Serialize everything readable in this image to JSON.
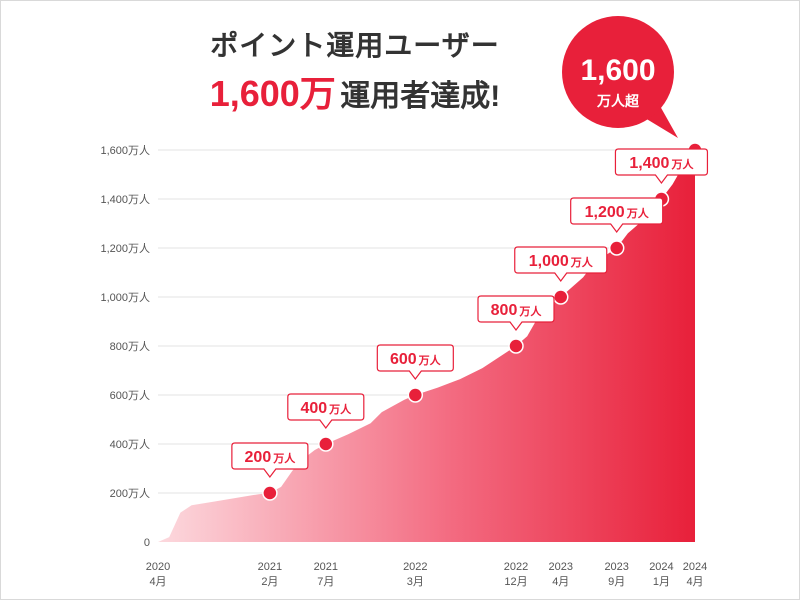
{
  "headline": {
    "line1": "ポイント運用ユーザー",
    "big_number": "1,600万",
    "rest": "運用者達成!"
  },
  "badge": {
    "number": "1,600",
    "unit": "万人超"
  },
  "colors": {
    "accent": "#e8203a",
    "fill_light": "#fbd6db",
    "grid": "#e3e3e3"
  },
  "chart_data": {
    "type": "area",
    "title": "",
    "xlabel": "",
    "ylabel": "",
    "ylim": [
      0,
      1600
    ],
    "y_unit": "万人",
    "y_ticks": [
      {
        "value": 0,
        "label": "0"
      },
      {
        "value": 200,
        "label": "200万人"
      },
      {
        "value": 400,
        "label": "400万人"
      },
      {
        "value": 600,
        "label": "600万人"
      },
      {
        "value": 800,
        "label": "800万人"
      },
      {
        "value": 1000,
        "label": "1,000万人"
      },
      {
        "value": 1200,
        "label": "1,200万人"
      },
      {
        "value": 1400,
        "label": "1,400万人"
      },
      {
        "value": 1600,
        "label": "1,600万人"
      }
    ],
    "x_range": [
      "2020-04",
      "2024-04"
    ],
    "x_ticks": [
      {
        "date": "2020-04",
        "year": "2020",
        "month": "4月"
      },
      {
        "date": "2021-02",
        "year": "2021",
        "month": "2月"
      },
      {
        "date": "2021-07",
        "year": "2021",
        "month": "7月"
      },
      {
        "date": "2022-03",
        "year": "2022",
        "month": "3月"
      },
      {
        "date": "2022-12",
        "year": "2022",
        "month": "12月"
      },
      {
        "date": "2023-04",
        "year": "2023",
        "month": "4月"
      },
      {
        "date": "2023-09",
        "year": "2023",
        "month": "9月"
      },
      {
        "date": "2024-01",
        "year": "2024",
        "month": "1月"
      },
      {
        "date": "2024-04",
        "year": "2024",
        "month": "4月"
      }
    ],
    "series": [
      {
        "points": [
          [
            "2020-04",
            0
          ],
          [
            "2020-05",
            20
          ],
          [
            "2020-06",
            120
          ],
          [
            "2020-07",
            150
          ],
          [
            "2020-09",
            165
          ],
          [
            "2020-11",
            180
          ],
          [
            "2021-01",
            195
          ],
          [
            "2021-02",
            200
          ],
          [
            "2021-03",
            225
          ],
          [
            "2021-04",
            290
          ],
          [
            "2021-05",
            340
          ],
          [
            "2021-06",
            375
          ],
          [
            "2021-07",
            400
          ],
          [
            "2021-09",
            440
          ],
          [
            "2021-11",
            485
          ],
          [
            "2021-12",
            530
          ],
          [
            "2022-02",
            580
          ],
          [
            "2022-03",
            600
          ],
          [
            "2022-05",
            630
          ],
          [
            "2022-07",
            665
          ],
          [
            "2022-09",
            710
          ],
          [
            "2022-10",
            740
          ],
          [
            "2022-12",
            800
          ],
          [
            "2023-01",
            840
          ],
          [
            "2023-02",
            920
          ],
          [
            "2023-03",
            970
          ],
          [
            "2023-04",
            1000
          ],
          [
            "2023-06",
            1080
          ],
          [
            "2023-07",
            1140
          ],
          [
            "2023-09",
            1200
          ],
          [
            "2023-10",
            1260
          ],
          [
            "2023-12",
            1340
          ],
          [
            "2024-01",
            1400
          ],
          [
            "2024-02",
            1460
          ],
          [
            "2024-03",
            1540
          ],
          [
            "2024-04",
            1600
          ]
        ]
      }
    ],
    "milestones": [
      {
        "date": "2021-02",
        "value": 200,
        "label_num": "200",
        "label_unit": "万人"
      },
      {
        "date": "2021-07",
        "value": 400,
        "label_num": "400",
        "label_unit": "万人"
      },
      {
        "date": "2022-03",
        "value": 600,
        "label_num": "600",
        "label_unit": "万人"
      },
      {
        "date": "2022-12",
        "value": 800,
        "label_num": "800",
        "label_unit": "万人"
      },
      {
        "date": "2023-04",
        "value": 1000,
        "label_num": "1,000",
        "label_unit": "万人"
      },
      {
        "date": "2023-09",
        "value": 1200,
        "label_num": "1,200",
        "label_unit": "万人"
      },
      {
        "date": "2024-01",
        "value": 1400,
        "label_num": "1,400",
        "label_unit": "万人"
      },
      {
        "date": "2024-04",
        "value": 1600,
        "label_num": "",
        "label_unit": ""
      }
    ],
    "grid": true,
    "legend": "none"
  }
}
